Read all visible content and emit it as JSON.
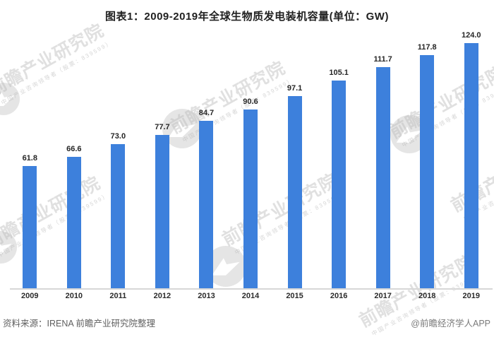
{
  "chart_data": {
    "type": "bar",
    "title": "图表1：2009-2019年全球生物质发电装机容量(单位：GW)",
    "unit": "GW",
    "categories": [
      "2009",
      "2010",
      "2011",
      "2012",
      "2013",
      "2014",
      "2015",
      "2016",
      "2017",
      "2018",
      "2019"
    ],
    "values": [
      61.8,
      66.6,
      73.0,
      77.7,
      84.7,
      90.6,
      97.1,
      105.1,
      111.7,
      117.8,
      124.0
    ],
    "value_labels": "above-bars, one decimal",
    "bar_color": "#3d80dc",
    "xlabel": "",
    "ylabel": "",
    "ylim": [
      0,
      130
    ],
    "grid": false,
    "legend": "none"
  },
  "footer": {
    "source": "资料来源：IRENA 前瞻产业研究院整理",
    "credit": "@前瞻经济学人APP"
  },
  "watermark": {
    "brand": "前瞻产业研究院",
    "tagline": "中国产业咨询领导者（股票：839599）",
    "logo_icon": "qianzhan-bird-logo"
  }
}
